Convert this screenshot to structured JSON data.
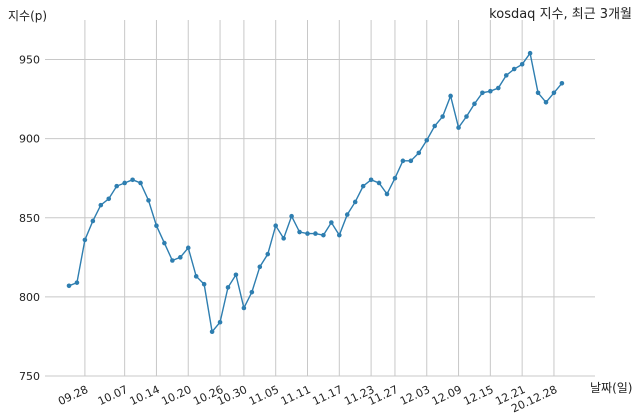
{
  "chart_data": {
    "type": "line",
    "title": "kosdaq 지수, 최근 3개월",
    "xlabel": "날짜(일)",
    "ylabel": "지수(p)",
    "ylim": [
      750,
      975
    ],
    "yticks": [
      750,
      800,
      850,
      900,
      950
    ],
    "grid": true,
    "line_color": "#2e7eb0",
    "xtick_labels": [
      "09.28",
      "10.07",
      "10.14",
      "10.20",
      "10.26",
      "10.30",
      "11.05",
      "11.11",
      "11.17",
      "11.23",
      "11.27",
      "12.03",
      "12.09",
      "12.15",
      "12.21",
      "20.12.28"
    ],
    "xtick_index": [
      2,
      7,
      11,
      15,
      19,
      22,
      26,
      30,
      34,
      38,
      41,
      45,
      49,
      53,
      57,
      61
    ],
    "series": [
      {
        "values": [
          807,
          809,
          836,
          848,
          858,
          862,
          870,
          872,
          874,
          872,
          861,
          845,
          834,
          823,
          825,
          831,
          813,
          808,
          778,
          784,
          806,
          814,
          793,
          803,
          819,
          827,
          845,
          837,
          851,
          841,
          840,
          840,
          839,
          847,
          839,
          852,
          860,
          870,
          874,
          872,
          865,
          875,
          886,
          886,
          891,
          899,
          908,
          914,
          927,
          907,
          914,
          922,
          929,
          930,
          932,
          940,
          944,
          947,
          954,
          929,
          923,
          929,
          935
        ]
      }
    ]
  }
}
